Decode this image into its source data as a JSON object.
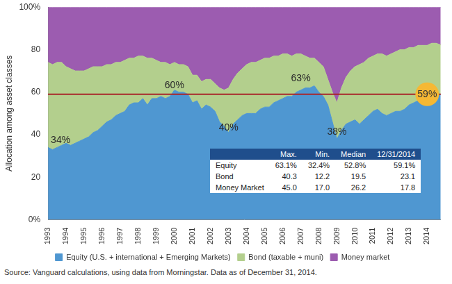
{
  "chart_data": {
    "type": "area",
    "stacked": true,
    "grid": false,
    "legend": "bottom",
    "y_label": "Allocation among asset classes",
    "categories": [
      "1993",
      null,
      null,
      null,
      "1994",
      null,
      null,
      null,
      "1995",
      null,
      null,
      null,
      "1996",
      null,
      null,
      null,
      "1997",
      null,
      null,
      null,
      "1998",
      null,
      null,
      null,
      "1999",
      null,
      null,
      null,
      "2000",
      null,
      null,
      null,
      "2001",
      null,
      null,
      null,
      "2002",
      null,
      null,
      null,
      "2003",
      null,
      null,
      null,
      "2004",
      null,
      null,
      null,
      "2005",
      null,
      null,
      null,
      "2006",
      null,
      null,
      null,
      "2007",
      null,
      null,
      null,
      "2008",
      null,
      null,
      null,
      "2009",
      null,
      null,
      null,
      "2010",
      null,
      null,
      null,
      "2011",
      null,
      null,
      null,
      "2012",
      null,
      null,
      null,
      "2013",
      null,
      null,
      null,
      "2014",
      null,
      null,
      null
    ],
    "series": [
      {
        "name": "Equity (U.S. + international + Emerging Markets)",
        "color": "#4f97d1",
        "values": [
          34,
          33,
          34,
          35,
          36,
          35,
          36,
          37,
          38,
          39,
          41,
          42,
          44,
          46,
          47,
          49,
          50,
          51,
          54,
          55,
          55,
          57,
          54,
          57,
          57,
          58,
          57,
          58,
          61,
          60,
          60,
          59,
          55,
          56,
          52,
          54,
          53,
          51,
          46,
          44,
          41,
          45,
          47,
          49,
          50,
          50,
          50,
          52,
          53,
          53,
          55,
          56,
          57,
          58,
          58,
          60,
          61,
          62,
          62,
          63,
          60,
          58,
          54,
          46,
          38,
          42,
          45,
          46,
          47,
          45,
          47,
          49,
          51,
          52,
          50,
          49,
          50,
          51,
          51,
          52,
          54,
          55,
          56,
          57,
          58,
          58,
          59,
          59.1
        ]
      },
      {
        "name": "Bond (taxable + muni)",
        "color": "#b3cf8d",
        "values": [
          40,
          40,
          40,
          39,
          36,
          36,
          34,
          33,
          32,
          32,
          31,
          30,
          28,
          27,
          26,
          25,
          24,
          24,
          22,
          21,
          22,
          20,
          22,
          19,
          18,
          16,
          17,
          15,
          13,
          13,
          13,
          13,
          13,
          12,
          13,
          12,
          13,
          13,
          16,
          17,
          21,
          21,
          22,
          22,
          23,
          24,
          24,
          23,
          23,
          23,
          22,
          21,
          21,
          20,
          19,
          18,
          17,
          15,
          14,
          13,
          14,
          14,
          12,
          14,
          17,
          20,
          22,
          24,
          25,
          28,
          27,
          27,
          26,
          26,
          28,
          28,
          28,
          28,
          29,
          28,
          27,
          26,
          26,
          25,
          24,
          25,
          24,
          23.1
        ]
      },
      {
        "name": "Money market",
        "color": "#9c5cb0",
        "values": [
          26,
          27,
          26,
          26,
          28,
          29,
          30,
          30,
          30,
          29,
          28,
          28,
          28,
          27,
          27,
          26,
          26,
          25,
          24,
          24,
          23,
          23,
          24,
          24,
          25,
          26,
          26,
          27,
          26,
          27,
          27,
          28,
          32,
          32,
          35,
          34,
          34,
          36,
          38,
          39,
          38,
          34,
          31,
          29,
          27,
          26,
          26,
          25,
          24,
          24,
          23,
          23,
          22,
          22,
          23,
          22,
          22,
          23,
          24,
          24,
          26,
          28,
          34,
          40,
          45,
          38,
          33,
          30,
          28,
          27,
          26,
          24,
          23,
          22,
          22,
          23,
          22,
          21,
          20,
          20,
          19,
          19,
          18,
          18,
          18,
          17,
          17,
          17.8
        ]
      }
    ],
    "ylim": [
      0,
      100
    ],
    "yticks": [
      {
        "value": 0,
        "label": "0%"
      },
      20,
      40,
      60,
      80,
      {
        "value": 100,
        "label": "100%"
      }
    ],
    "annotations": [
      {
        "text": "34%",
        "x": "1993",
        "value": 34
      },
      {
        "text": "60%",
        "x": "2000",
        "value": 60
      },
      {
        "text": "40%",
        "x": "2003",
        "value": 40
      },
      {
        "text": "63%",
        "x": "2007",
        "value": 63
      },
      {
        "text": "38%",
        "x": "2009",
        "value": 38
      },
      {
        "text": "59%",
        "x": "2014",
        "value": 59,
        "color": "#f5b834"
      }
    ],
    "reference_line": {
      "value": 59,
      "color": "#a8262b"
    },
    "table": {
      "columns": [
        "Max.",
        "Min.",
        "Median",
        "12/31/2014"
      ],
      "rows": [
        {
          "label": "Equity",
          "cells": [
            "63.1%",
            "32.4%",
            "52.8%",
            "59.1%"
          ]
        },
        {
          "label": "Bond",
          "cells": [
            "40.3",
            "12.2",
            "19.5",
            "23.1"
          ]
        },
        {
          "label": "Money Market",
          "cells": [
            "45.0",
            "17.0",
            "26.2",
            "17.8"
          ]
        }
      ]
    },
    "source": "Source: Vanguard calculations, using data from Morningstar. Data as of December 31, 2014."
  }
}
